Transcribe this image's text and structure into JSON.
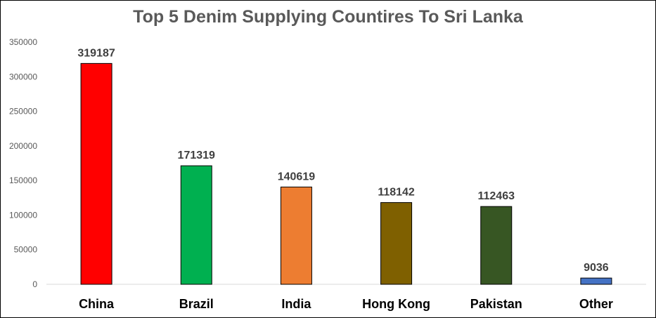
{
  "chart_data": {
    "type": "bar",
    "title": "Top 5 Denim Supplying Countires To Sri Lanka",
    "xlabel": "",
    "ylabel": "",
    "categories": [
      "China",
      "Brazil",
      "India",
      "Hong Kong",
      "Pakistan",
      "Other"
    ],
    "values": [
      319187,
      171319,
      140619,
      118142,
      112463,
      9036
    ],
    "data_labels": [
      "319187",
      "171319",
      "140619",
      "118142",
      "112463",
      "9036"
    ],
    "colors": [
      "#FF0000",
      "#00B050",
      "#ED7D31",
      "#7F6000",
      "#375623",
      "#4472C4"
    ],
    "ylim": [
      0,
      350000
    ],
    "yticks": [
      0,
      50000,
      100000,
      150000,
      200000,
      250000,
      300000,
      350000
    ],
    "ytick_labels": [
      "0",
      "50000",
      "100000",
      "150000",
      "200000",
      "250000",
      "300000",
      "350000"
    ],
    "grid": false,
    "legend": "none"
  }
}
